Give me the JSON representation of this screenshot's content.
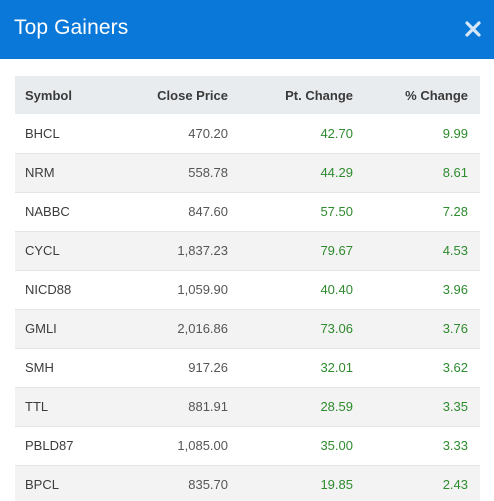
{
  "window": {
    "title": "Top Gainers",
    "close_icon": "close-icon"
  },
  "table": {
    "headers": [
      "Symbol",
      "Close Price",
      "Pt. Change",
      "% Change"
    ],
    "rows": [
      [
        "BHCL",
        "470.20",
        "42.70",
        "9.99"
      ],
      [
        "NRM",
        "558.78",
        "44.29",
        "8.61"
      ],
      [
        "NABBC",
        "847.60",
        "57.50",
        "7.28"
      ],
      [
        "CYCL",
        "1,837.23",
        "79.67",
        "4.53"
      ],
      [
        "NICD88",
        "1,059.90",
        "40.40",
        "3.96"
      ],
      [
        "GMLI",
        "2,016.86",
        "73.06",
        "3.76"
      ],
      [
        "SMH",
        "917.26",
        "32.01",
        "3.62"
      ],
      [
        "TTL",
        "881.91",
        "28.59",
        "3.35"
      ],
      [
        "PBLD87",
        "1,085.00",
        "35.00",
        "3.33"
      ],
      [
        "BPCL",
        "835.70",
        "19.85",
        "2.43"
      ]
    ]
  },
  "colors": {
    "header_bg": "#0a78d8",
    "positive": "#2e8b2e",
    "table_header_bg": "#e9ecef",
    "stripe_bg": "#f3f3f3"
  }
}
